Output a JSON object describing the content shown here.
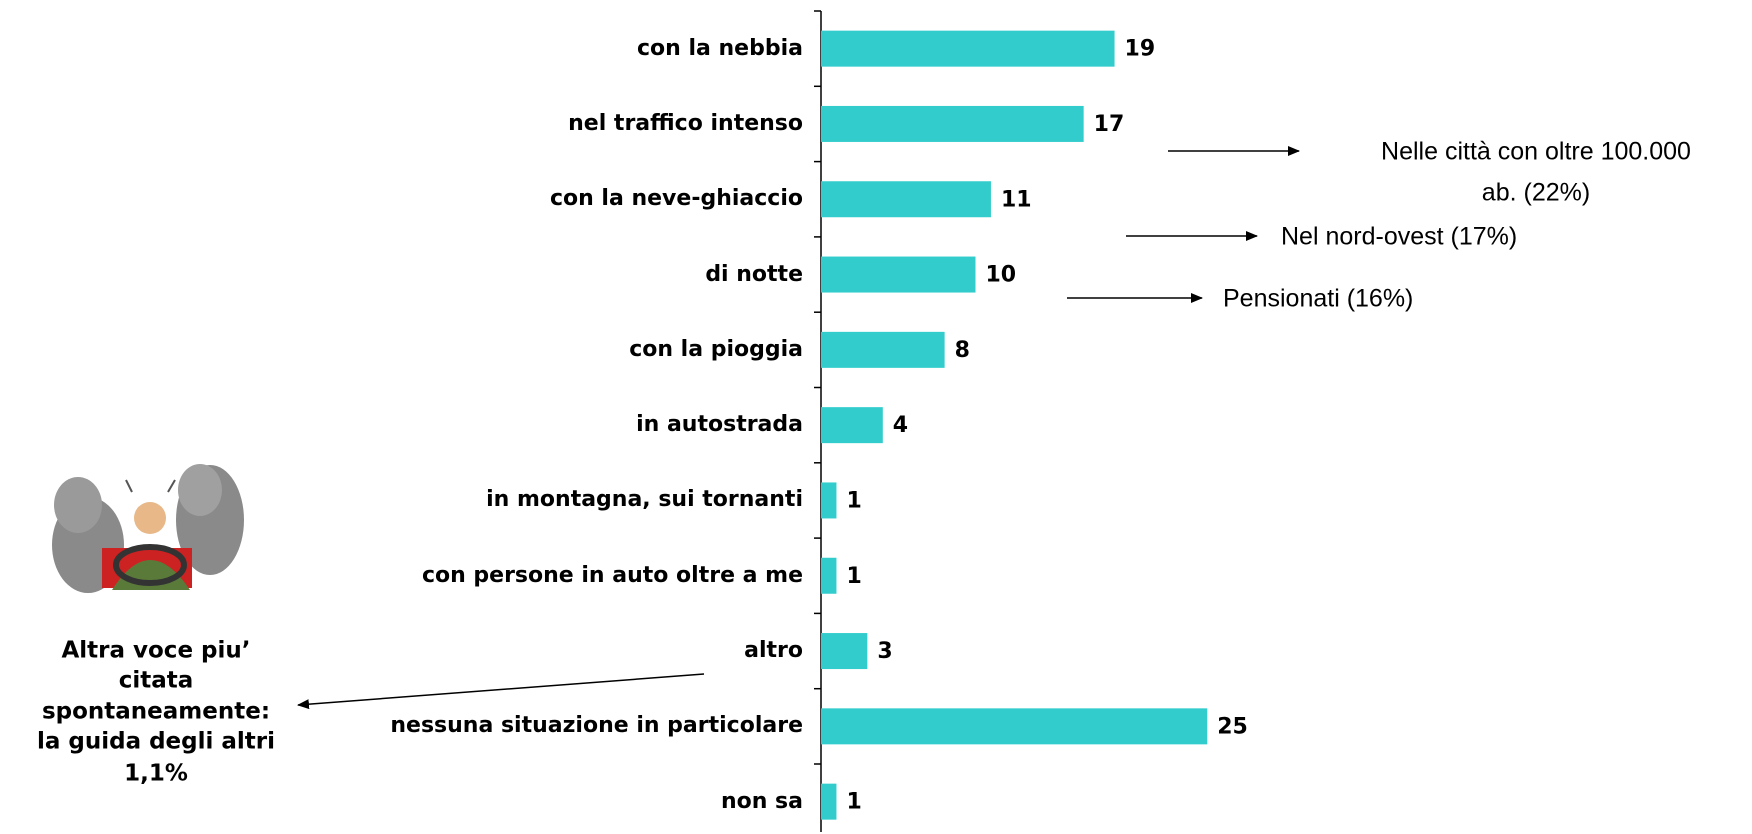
{
  "chart_data": {
    "type": "barh",
    "categories": [
      "con la nebbia",
      "nel traffico intenso",
      "con la neve-ghiaccio",
      "di notte",
      "con la pioggia",
      "in autostrada",
      "in montagna, sui tornanti",
      "con persone in auto oltre a me",
      "altro",
      "nessuna situazione in particolare",
      "non sa"
    ],
    "values": [
      19,
      17,
      11,
      10,
      8,
      4,
      1,
      1,
      3,
      25,
      1
    ],
    "color": "#33cccc",
    "annotations": [
      {
        "lines": [
          "Nelle città con oltre 100.000",
          "ab. (22%)"
        ]
      },
      {
        "lines": [
          "Nel nord-ovest (17%)"
        ]
      },
      {
        "lines": [
          "Pensionati (16%)"
        ]
      }
    ],
    "side_note": [
      "Altra voce piu’",
      "citata",
      "spontaneamente:",
      "la guida degli altri",
      "1,1%"
    ]
  }
}
